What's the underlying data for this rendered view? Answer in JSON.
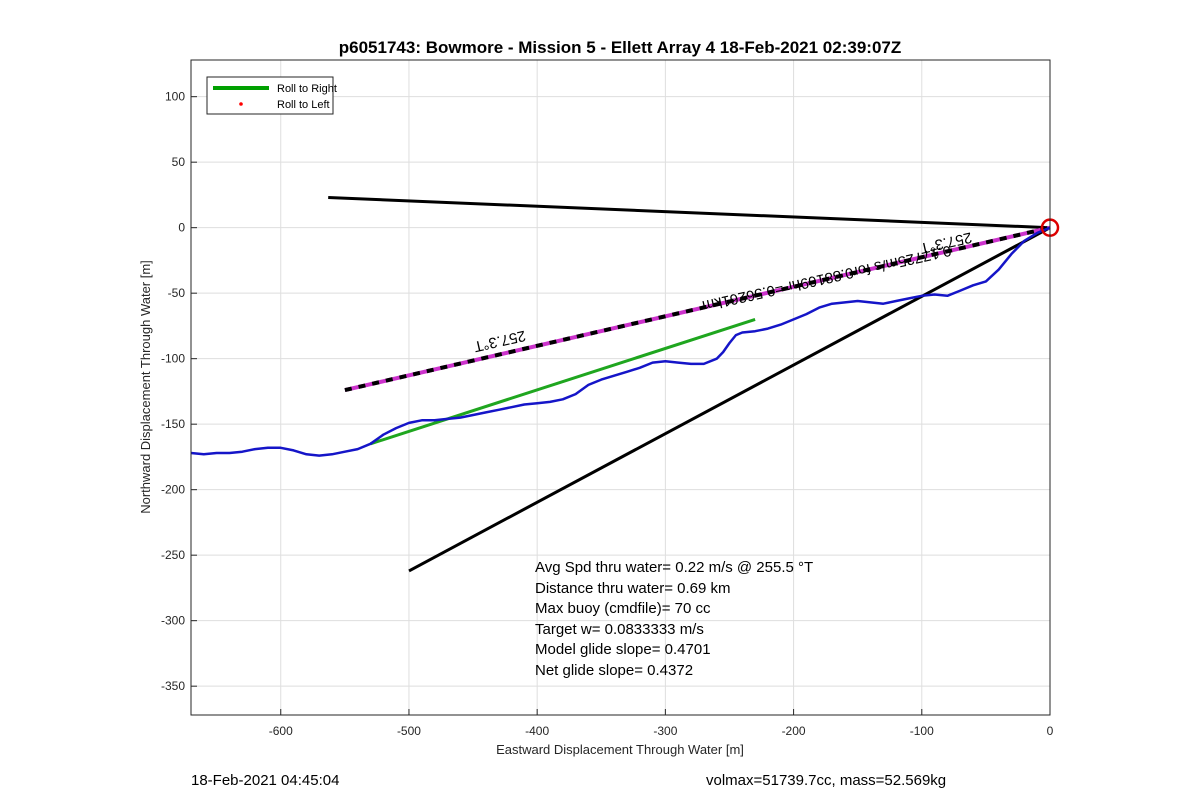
{
  "chart_data": {
    "type": "line",
    "title": "p6051743: Bowmore - Mission 5 - Ellett Array 4 18-Feb-2021 02:39:07Z",
    "xlabel": "Eastward Displacement Through Water [m]",
    "ylabel": "Northward Displacement Through Water [m]",
    "xlim": [
      -670,
      0
    ],
    "ylim": [
      -372,
      128
    ],
    "xticks": [
      -600,
      -500,
      -400,
      -300,
      -200,
      -100,
      0
    ],
    "yticks": [
      100,
      50,
      0,
      -50,
      -100,
      -150,
      -200,
      -250,
      -300,
      -350
    ],
    "grid": true,
    "legend_position": "top-left",
    "legend": [
      {
        "label": "Roll to Right",
        "color": "#00a000",
        "style": "line"
      },
      {
        "label": "Roll to Left",
        "color": "#ff0000",
        "style": "dot"
      }
    ],
    "series": [
      {
        "name": "Roll to Right",
        "color": "#1fa61f",
        "x": [
          -530,
          -230
        ],
        "y": [
          -165,
          -70
        ]
      },
      {
        "color": "#1515c8",
        "x": [
          -670,
          -660,
          -650,
          -640,
          -630,
          -620,
          -610,
          -600,
          -590,
          -580,
          -570,
          -560,
          -550,
          -540,
          -530,
          -520,
          -510,
          -500,
          -490,
          -480,
          -470,
          -460,
          -450,
          -440,
          -430,
          -420,
          -410,
          -400,
          -390,
          -380,
          -370,
          -360,
          -350,
          -340,
          -330,
          -320,
          -310,
          -300,
          -290,
          -280,
          -270,
          -260,
          -255,
          -250,
          -245,
          -240,
          -230,
          -220,
          -210,
          -200,
          -190,
          -180,
          -170,
          -160,
          -150,
          -140,
          -130,
          -120,
          -110,
          -100,
          -90,
          -80,
          -70,
          -60,
          -50,
          -40,
          -30,
          -20,
          -10,
          0
        ],
        "y": [
          -172,
          -173,
          -172,
          -172,
          -171,
          -169,
          -168,
          -168,
          -170,
          -173,
          -174,
          -173,
          -171,
          -169,
          -165,
          -158,
          -153,
          -149,
          -147,
          -147,
          -146,
          -145,
          -143,
          -141,
          -139,
          -137,
          -135,
          -134,
          -133,
          -131,
          -127,
          -120,
          -116,
          -113,
          -110,
          -107,
          -103,
          -102,
          -103,
          -104,
          -104,
          -100,
          -95,
          -88,
          -82,
          -80,
          -79,
          -77,
          -74,
          -70,
          -66,
          -61,
          -58,
          -57,
          -56,
          -57,
          -58,
          -56,
          -54,
          -52,
          -51,
          -52,
          -48,
          -44,
          -41,
          -32,
          -20,
          -10,
          -4,
          0
        ]
      },
      {
        "color": "#000000",
        "x": [
          -563,
          0
        ],
        "y": [
          23,
          0
        ]
      },
      {
        "color": "#000000",
        "x": [
          -500,
          0
        ],
        "y": [
          -262,
          0
        ]
      },
      {
        "color": "#cc33cc",
        "dashed_overlay": "#000000",
        "x": [
          -550,
          0
        ],
        "y": [
          -124,
          0
        ]
      }
    ],
    "marker": {
      "x": 0,
      "y": 0,
      "color": "#dd0000",
      "shape": "circle"
    },
    "annotations": [
      {
        "text": "257.3°T",
        "x": -430,
        "y": -83,
        "rotation_deg": 167.3
      },
      {
        "text": "257.3°T",
        "x": -82,
        "y": -8,
        "rotation_deg": 167.3
      },
      {
        "text": "0.17725m/s for0.88169hr =0.56261km",
        "x": -175,
        "y": -35,
        "rotation_deg": 167.3
      }
    ],
    "stats_lines": [
      "Avg Spd thru water=  0.22 m/s @ 255.5 °T",
      "Distance thru water=  0.69 km",
      "Max buoy (cmdfile)= 70 cc",
      "Target w= 0.0833333 m/s",
      "Model glide slope= 0.4701",
      "Net glide slope= 0.4372"
    ]
  },
  "footer": {
    "left": "18-Feb-2021 04:45:04",
    "right": "volmax=51739.7cc, mass=52.569kg"
  }
}
